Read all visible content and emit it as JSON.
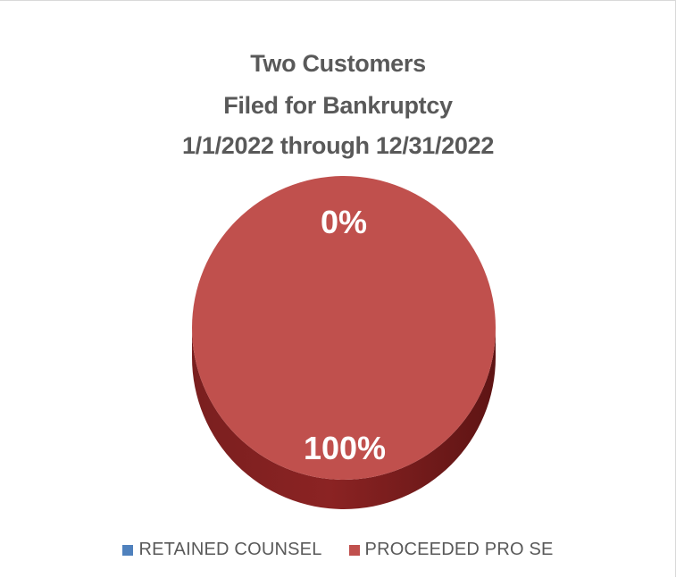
{
  "chart_data": {
    "type": "pie",
    "title": [
      "Two Customers",
      "Filed for Bankruptcy",
      "1/1/2022 through 12/31/2022"
    ],
    "categories": [
      "RETAINED COUNSEL",
      "PROCEEDED PRO SE"
    ],
    "values": [
      0,
      100
    ],
    "data_labels": [
      "0%",
      "100%"
    ],
    "colors": [
      "#4f81bd",
      "#c0504d"
    ],
    "side_color": "#8b2323",
    "legend_position": "bottom",
    "style": "3d"
  }
}
